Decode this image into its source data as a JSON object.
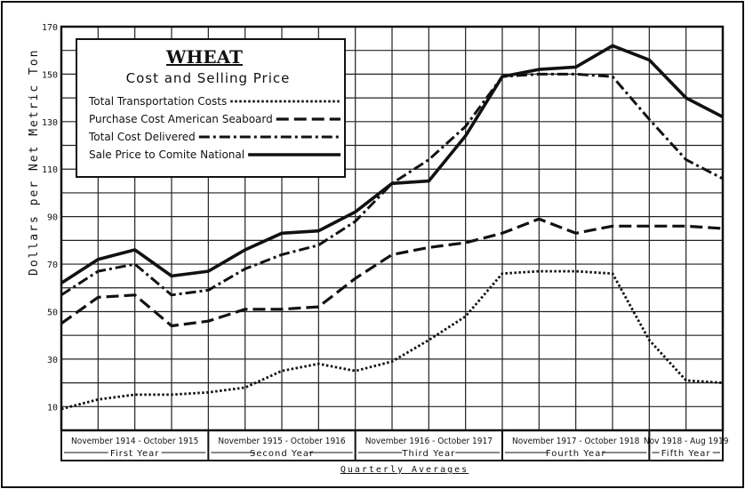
{
  "chart_data": {
    "type": "line",
    "title": "WHEAT",
    "subtitle": "Cost and Selling Price",
    "ylabel": "Dollars per Net Metric Ton",
    "xlabel": "Quarterly Averages",
    "ylim": [
      0,
      170
    ],
    "yticks": [
      10,
      30,
      50,
      70,
      90,
      110,
      130,
      150,
      170
    ],
    "grid": true,
    "legend_position": "top-left",
    "periods": [
      {
        "label": "November 1914 - October 1915",
        "year": "First Year"
      },
      {
        "label": "November 1915 - October 1916",
        "year": "Second Year"
      },
      {
        "label": "November 1916 - October 1917",
        "year": "Third Year"
      },
      {
        "label": "November 1917 - October 1918",
        "year": "Fourth Year"
      },
      {
        "label": "Nov 1918 - Aug 1919",
        "year": "Fifth Year"
      }
    ],
    "x": [
      0,
      1,
      2,
      3,
      4,
      5,
      6,
      7,
      8,
      9,
      10,
      11,
      12,
      13,
      14,
      15,
      16,
      17,
      18
    ],
    "series": [
      {
        "name": "Total Transportation Costs",
        "style": "dotted",
        "values": [
          9,
          13,
          15,
          15,
          16,
          18,
          25,
          28,
          25,
          29,
          38,
          48,
          66,
          67,
          67,
          66,
          38,
          21,
          20
        ]
      },
      {
        "name": "Purchase Cost American Seaboard",
        "style": "dashed",
        "values": [
          45,
          56,
          57,
          44,
          46,
          51,
          51,
          52,
          64,
          74,
          77,
          79,
          83,
          89,
          83,
          86,
          86,
          86,
          85
        ]
      },
      {
        "name": "Total Cost Delivered",
        "style": "dash-dot",
        "values": [
          57,
          67,
          70,
          57,
          59,
          68,
          74,
          78,
          88,
          104,
          114,
          128,
          149,
          150,
          150,
          149,
          131,
          114,
          106
        ]
      },
      {
        "name": "Sale Price to Comite National",
        "style": "solid",
        "values": [
          62,
          72,
          76,
          65,
          67,
          76,
          83,
          84,
          92,
          104,
          105,
          124,
          149,
          152,
          153,
          162,
          156,
          140,
          132
        ]
      }
    ]
  }
}
